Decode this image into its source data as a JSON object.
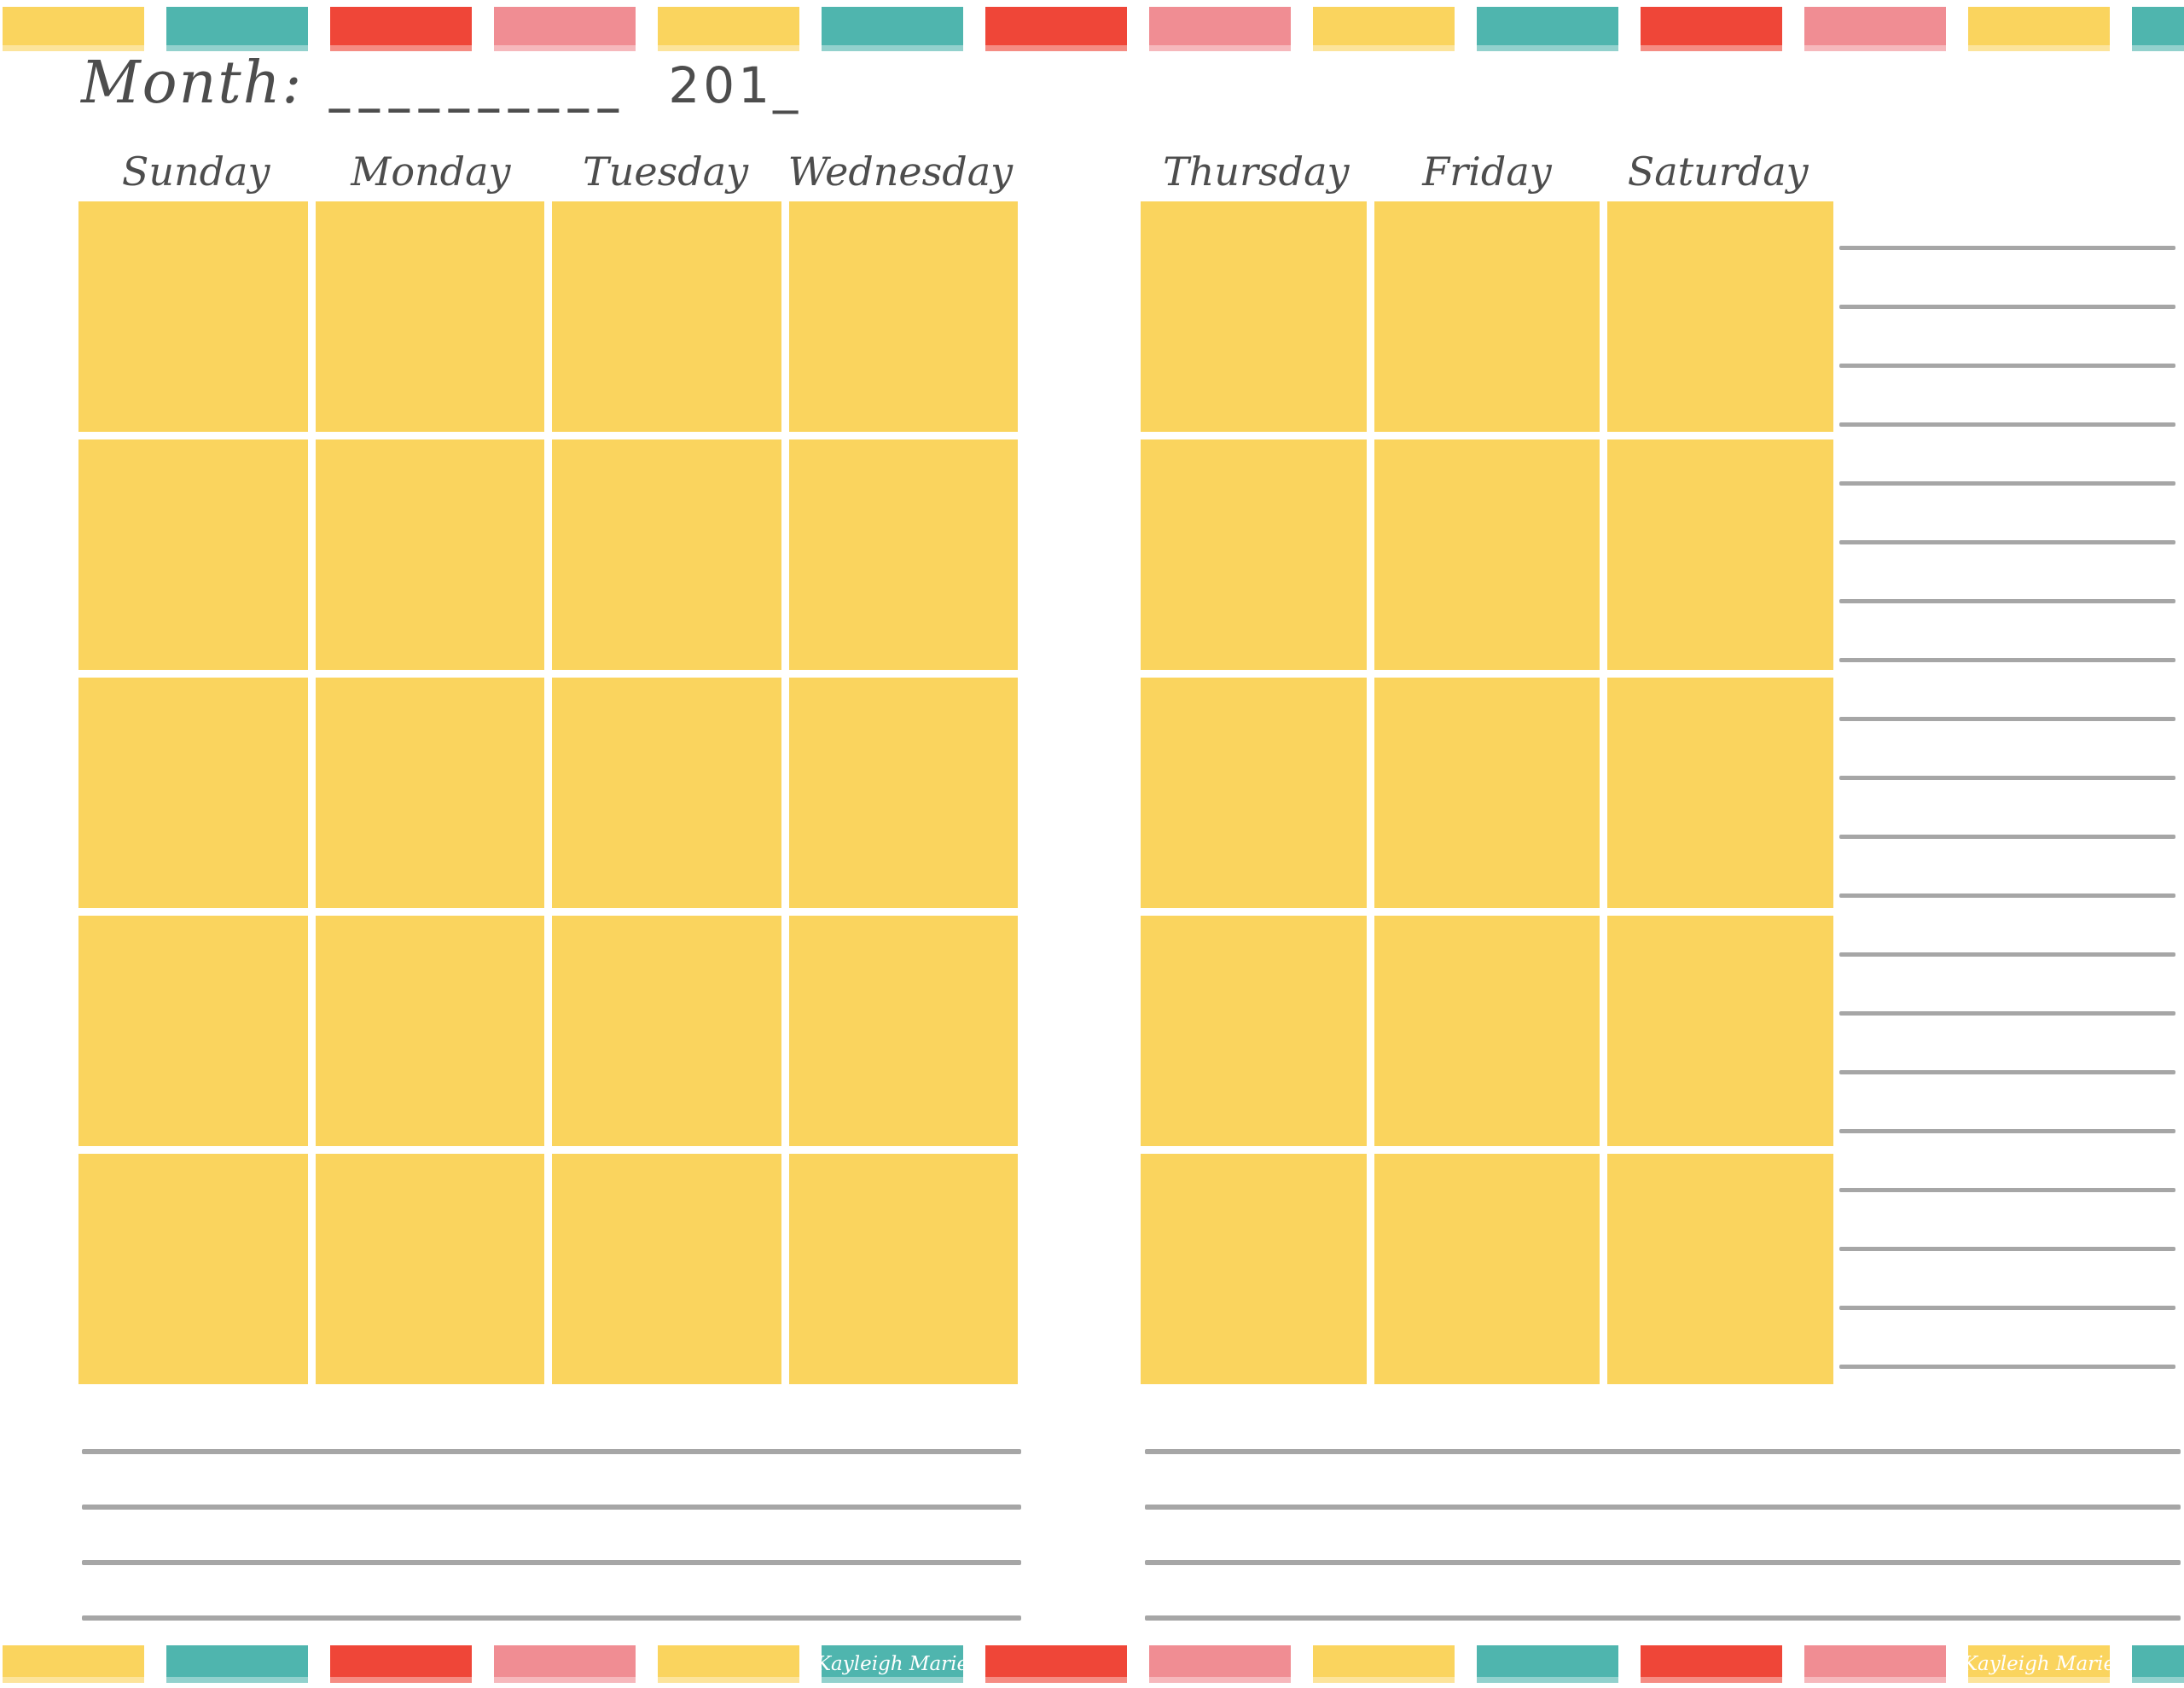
{
  "title": {
    "label": "Month:",
    "blank": "__________",
    "year": "201_"
  },
  "days": {
    "left": [
      "Sunday",
      "Monday",
      "Tuesday",
      "Wednesday"
    ],
    "right": [
      "Thursday",
      "Friday",
      "Saturday"
    ]
  },
  "brand": "Kayleigh Marie",
  "palette": {
    "yellow": "#FAD45E",
    "teal": "#4FB5AE",
    "red": "#EF4638",
    "pink": "#F08D93",
    "ink": "#4D4D4D",
    "line": "#A6A6A6"
  },
  "border": {
    "sequence": [
      "yellow",
      "teal",
      "red",
      "pink"
    ],
    "block_count": 14,
    "bottom_brand_block_indexes": [
      5,
      12
    ]
  },
  "grids": {
    "rows": 5,
    "left_cols": 4,
    "right_cols": 3
  },
  "notes": {
    "side_line_count": 20,
    "bottom_line_count": 4
  }
}
